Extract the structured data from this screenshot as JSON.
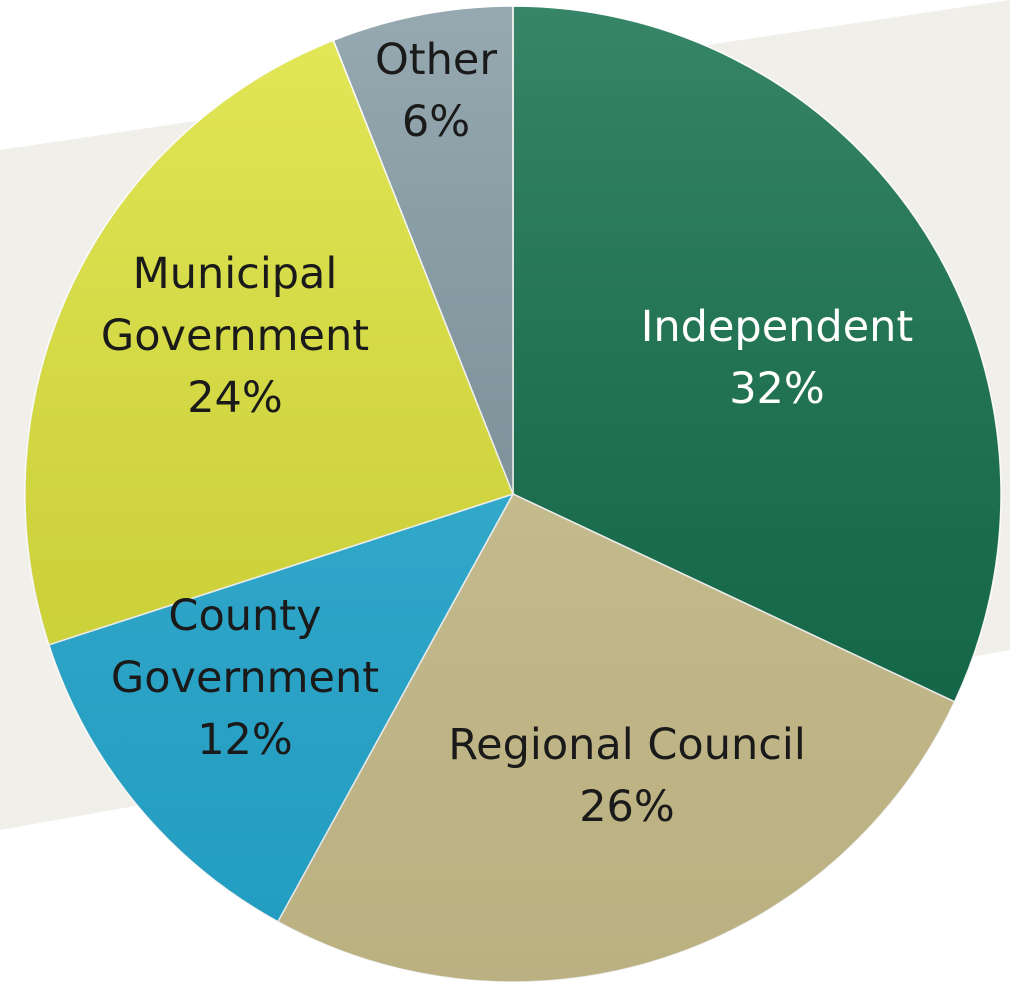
{
  "chart_data": {
    "type": "pie",
    "title": "",
    "slices": [
      {
        "name": "Independent",
        "value": 32,
        "percent_label": "32%",
        "color": "#0c6b47",
        "label_lines": [
          "Independent",
          "32%"
        ],
        "label_color": "#ffffff"
      },
      {
        "name": "Regional Council",
        "value": 26,
        "percent_label": "26%",
        "color": "#cfc48f",
        "label_lines": [
          "Regional Council",
          "26%"
        ],
        "label_color": "#1a1a1a"
      },
      {
        "name": "County Government",
        "value": 12,
        "percent_label": "12%",
        "color": "#25aed6",
        "label_lines": [
          "County",
          "Government",
          "12%"
        ],
        "label_color": "#1a1a1a"
      },
      {
        "name": "Municipal Government",
        "value": 24,
        "percent_label": "24%",
        "color": "#dde335",
        "label_lines": [
          "Municipal",
          "Government",
          "24%"
        ],
        "label_color": "#1a1a1a"
      },
      {
        "name": "Other",
        "value": 6,
        "percent_label": "6%",
        "color": "#7f96a0",
        "label_lines": [
          "Other",
          "6%"
        ],
        "label_color": "#1a1a1a"
      }
    ],
    "start_angle_deg": 0,
    "direction": "clockwise",
    "legend": "none",
    "data_labels": "inside"
  },
  "colors": {
    "background_band": "#f1efe9",
    "slice_edge": "#ffffff"
  }
}
